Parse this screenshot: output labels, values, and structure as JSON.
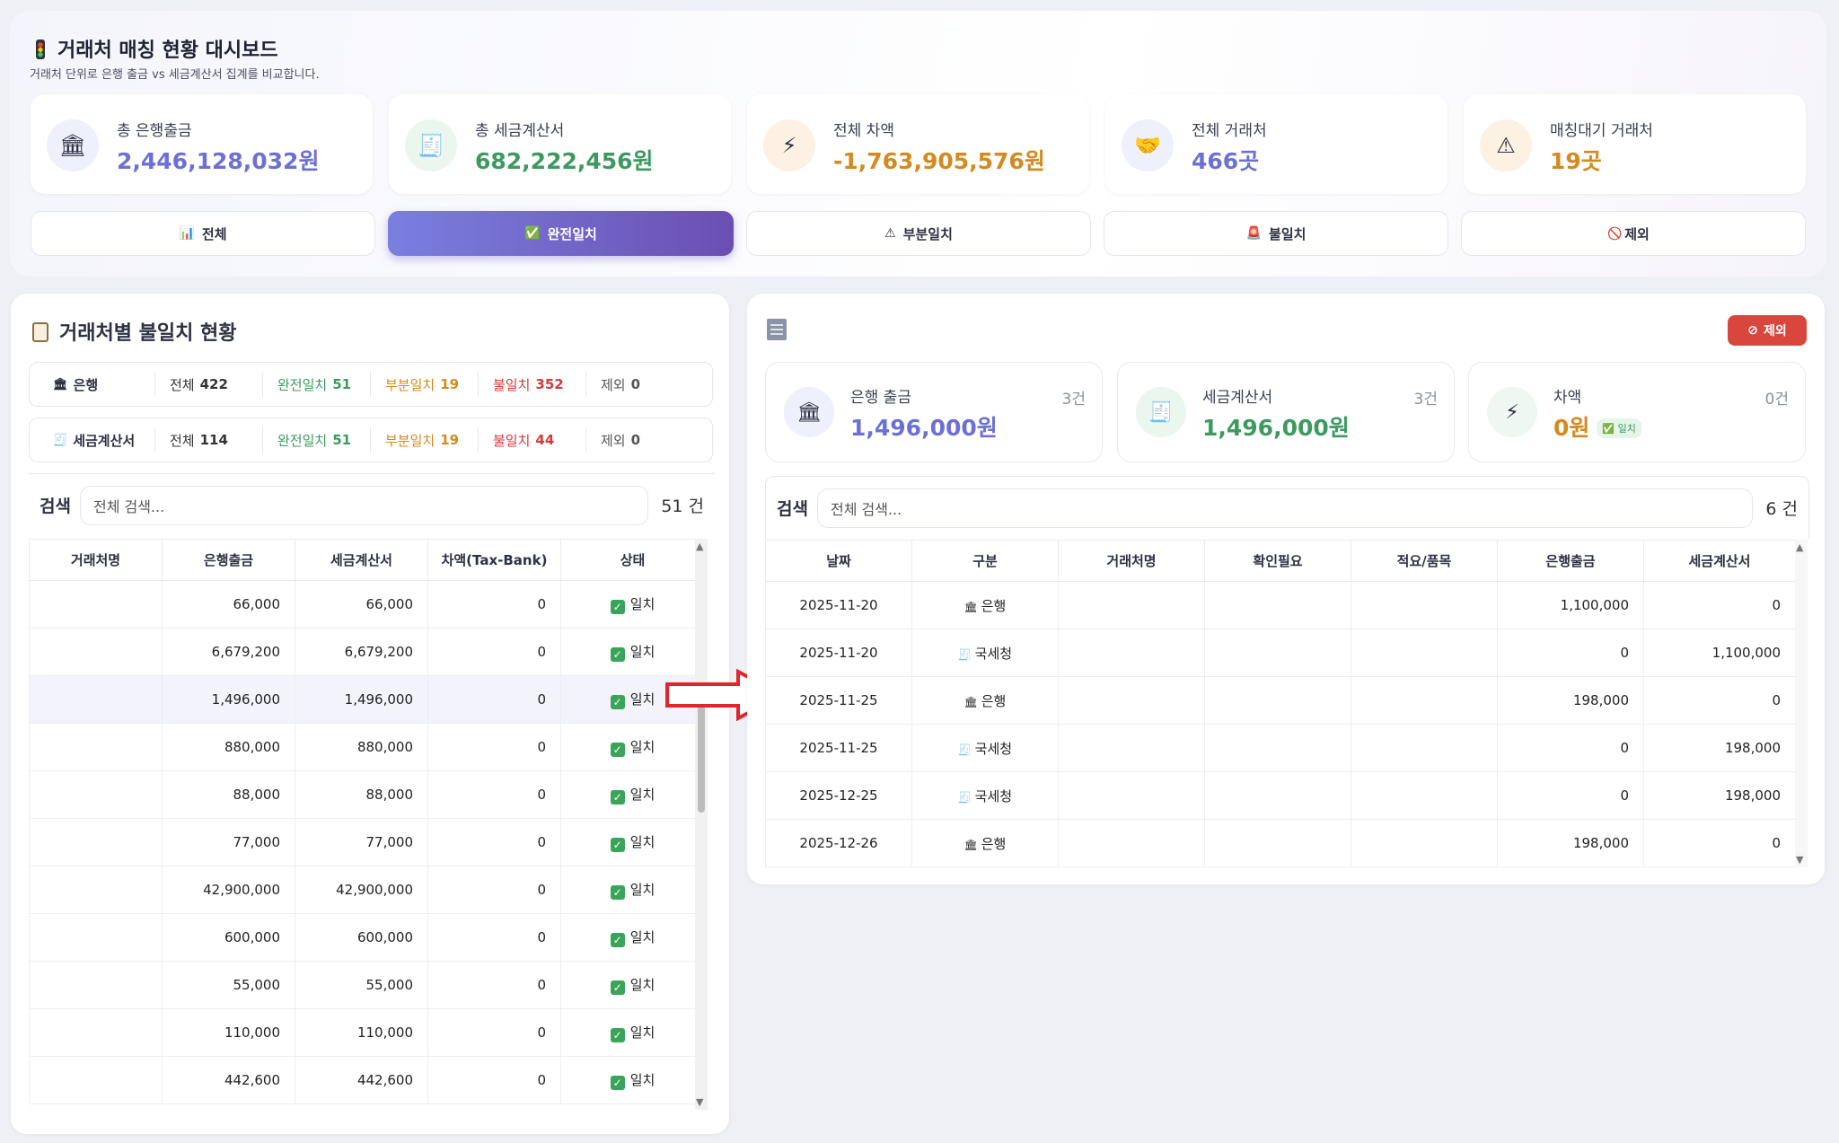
{
  "header": {
    "title": "거래처 매칭 현황 대시보드",
    "subtitle": "거래처 단위로 은행 출금 vs 세금계산서 집계를 비교합니다."
  },
  "stats": [
    {
      "label": "총 은행출금",
      "value": "2,446,128,032원",
      "icon": "bank-icon",
      "color": "#6c70d6"
    },
    {
      "label": "총 세금계산서",
      "value": "682,222,456원",
      "icon": "receipt-icon",
      "color": "#3c9a5f"
    },
    {
      "label": "전체 차액",
      "value": "-1,763,905,576원",
      "icon": "lightning-icon",
      "color": "#d48a1e"
    },
    {
      "label": "전체 거래처",
      "value": "466곳",
      "icon": "handshake-icon",
      "color": "#6c70d6"
    },
    {
      "label": "매칭대기 거래처",
      "value": "19곳",
      "icon": "warning-icon",
      "color": "#d48a1e"
    }
  ],
  "filters": [
    {
      "label": "전체",
      "icon": "chart-icon",
      "active": false
    },
    {
      "label": "완전일치",
      "icon": "check-icon",
      "active": true
    },
    {
      "label": "부분일치",
      "icon": "warning-icon",
      "active": false
    },
    {
      "label": "불일치",
      "icon": "siren-icon",
      "active": false
    },
    {
      "label": "제외",
      "icon": "prohibited-icon",
      "active": false
    }
  ],
  "left": {
    "title": "거래처별 불일치 현황",
    "summary": [
      {
        "label": "은행",
        "total_label": "전체",
        "total": "422",
        "full_label": "완전일치",
        "full": "51",
        "part_label": "부분일치",
        "part": "19",
        "mis_label": "불일치",
        "mis": "352",
        "ex_label": "제외",
        "ex": "0"
      },
      {
        "label": "세금계산서",
        "total_label": "전체",
        "total": "114",
        "full_label": "완전일치",
        "full": "51",
        "part_label": "부분일치",
        "part": "19",
        "mis_label": "불일치",
        "mis": "44",
        "ex_label": "제외",
        "ex": "0"
      }
    ],
    "search_label": "검색",
    "search_placeholder": "전체 검색...",
    "count": "51 건",
    "columns": [
      "거래처명",
      "은행출금",
      "세금계산서",
      "차액(Tax-Bank)",
      "상태"
    ],
    "rows": [
      [
        "",
        "66,000",
        "66,000",
        "0",
        "일치"
      ],
      [
        "",
        "6,679,200",
        "6,679,200",
        "0",
        "일치"
      ],
      [
        "",
        "1,496,000",
        "1,496,000",
        "0",
        "일치"
      ],
      [
        "",
        "880,000",
        "880,000",
        "0",
        "일치"
      ],
      [
        "",
        "88,000",
        "88,000",
        "0",
        "일치"
      ],
      [
        "",
        "77,000",
        "77,000",
        "0",
        "일치"
      ],
      [
        "",
        "42,900,000",
        "42,900,000",
        "0",
        "일치"
      ],
      [
        "",
        "600,000",
        "600,000",
        "0",
        "일치"
      ],
      [
        "",
        "55,000",
        "55,000",
        "0",
        "일치"
      ],
      [
        "",
        "110,000",
        "110,000",
        "0",
        "일치"
      ],
      [
        "",
        "442,600",
        "442,600",
        "0",
        "일치"
      ]
    ]
  },
  "right": {
    "exclude_label": "제외",
    "stats": [
      {
        "label": "은행 출금",
        "value": "1,496,000원",
        "count": "3건",
        "icon": "bank-icon"
      },
      {
        "label": "세금계산서",
        "value": "1,496,000원",
        "count": "3건",
        "icon": "receipt-icon"
      },
      {
        "label": "차액",
        "value": "0원",
        "count": "0건",
        "icon": "lightning-icon",
        "badge": "일치"
      }
    ],
    "search_label": "검색",
    "search_placeholder": "전체 검색...",
    "count": "6 건",
    "columns": [
      "날짜",
      "구분",
      "거래처명",
      "확인필요",
      "적요/품목",
      "은행출금",
      "세금계산서"
    ],
    "rows": [
      [
        "2025-11-20",
        "은행",
        "",
        "",
        "",
        "1,100,000",
        "0"
      ],
      [
        "2025-11-20",
        "국세청",
        "",
        "",
        "",
        "0",
        "1,100,000"
      ],
      [
        "2025-11-25",
        "은행",
        "",
        "",
        "",
        "198,000",
        "0"
      ],
      [
        "2025-11-25",
        "국세청",
        "",
        "",
        "",
        "0",
        "198,000"
      ],
      [
        "2025-12-25",
        "국세청",
        "",
        "",
        "",
        "0",
        "198,000"
      ],
      [
        "2025-12-26",
        "은행",
        "",
        "",
        "",
        "198,000",
        "0"
      ]
    ]
  }
}
